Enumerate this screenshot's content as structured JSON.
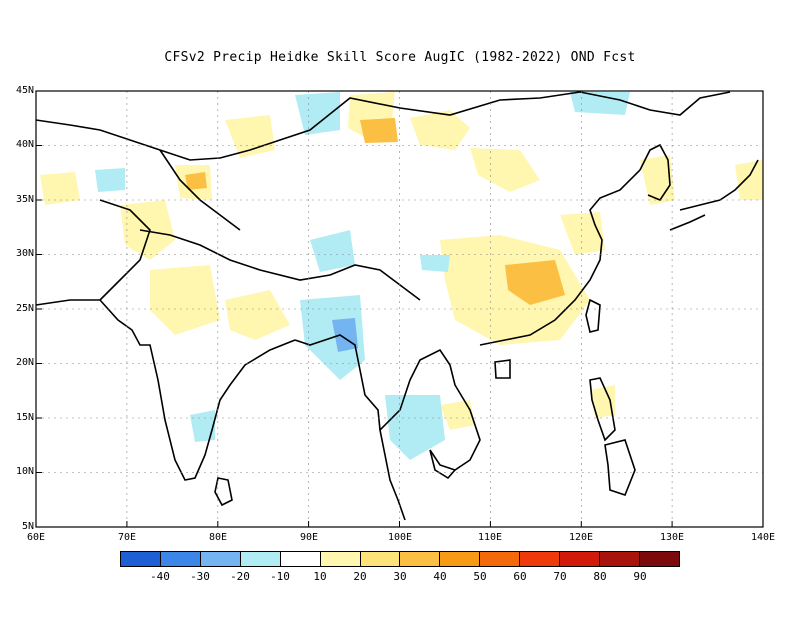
{
  "title": "CFSv2 Precip Heidke Skill Score AugIC (1982-2022) OND Fcst",
  "lat_labels": [
    "45N",
    "40N",
    "35N",
    "30N",
    "25N",
    "20N",
    "15N",
    "10N",
    "5N"
  ],
  "lon_labels": [
    "60E",
    "70E",
    "80E",
    "90E",
    "100E",
    "110E",
    "120E",
    "130E",
    "140E"
  ],
  "colorbar": {
    "colors": [
      "#1f5fd6",
      "#3b86e8",
      "#74b4f0",
      "#b1ecf4",
      "#ffffff",
      "#fff6b0",
      "#fde37a",
      "#fbbf44",
      "#f79a16",
      "#f46a0b",
      "#ee3a0a",
      "#d21a0a",
      "#a8140c",
      "#7d0a0a"
    ],
    "labels": [
      "-40",
      "-30",
      "-20",
      "-10",
      "10",
      "20",
      "30",
      "40",
      "50",
      "60",
      "70",
      "80",
      "90"
    ]
  },
  "map_colors": {
    "light_blue": "#b1ecf4",
    "mid_blue": "#74b4f0",
    "pale_yellow": "#fff6b0",
    "yellow": "#fde37a",
    "orange": "#fbbf44"
  }
}
